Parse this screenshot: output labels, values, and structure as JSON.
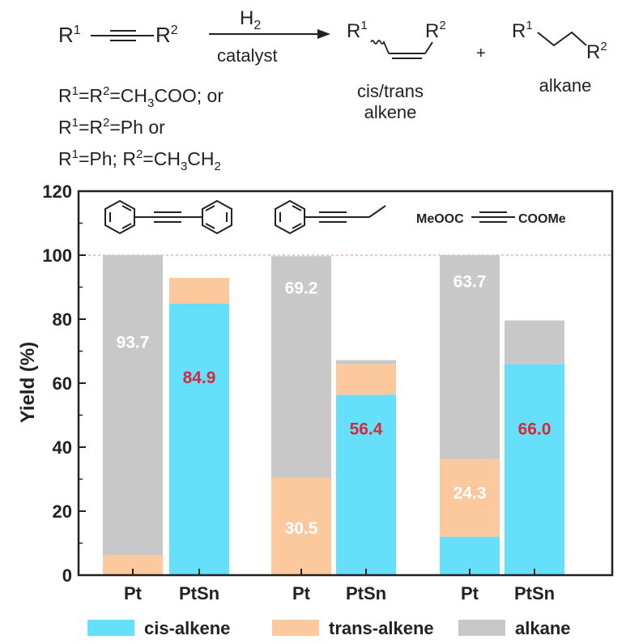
{
  "scheme": {
    "reactant_r1": "R",
    "reactant_r1_sup": "1",
    "reactant_r2": "R",
    "reactant_r2_sup": "2",
    "arrow_top": "H",
    "arrow_top_sub": "2",
    "arrow_bottom": "catalyst",
    "plus": "+",
    "alkene_label_1": "cis/trans",
    "alkene_label_2": "alkene",
    "alkane_label": "alkane",
    "cond_line1": {
      "a": "R",
      "a_sup": "1",
      "b": "=R",
      "b_sup": "2",
      "c": "=CH",
      "c_sub": "3",
      "d": "COO; or"
    },
    "cond_line2": {
      "a": "R",
      "a_sup": "1",
      "b": "=R",
      "b_sup": "2",
      "c": "=Ph or"
    },
    "cond_line3": {
      "a": "R",
      "a_sup": "1",
      "b": "=Ph; R",
      "b_sup": "2",
      "c": "=CH",
      "c_sub": "3",
      "d": "CH",
      "d_sub": "2"
    },
    "ester_label_left": "MeOOC",
    "ester_label_right": "COOMe"
  },
  "chart_data": {
    "type": "bar",
    "stacked": true,
    "ylabel": "Yield (%)",
    "xlabel": "",
    "ylim": [
      0,
      120
    ],
    "yticks": [
      0,
      20,
      40,
      60,
      80,
      100,
      120
    ],
    "reference_line": 100,
    "categories": [
      "Pt",
      "PtSn",
      "Pt",
      "PtSn",
      "Pt",
      "PtSn"
    ],
    "series": [
      {
        "name": "cis-alkene",
        "color": "#66e0fa",
        "values": [
          0,
          84.9,
          0,
          56.4,
          12.0,
          66.0
        ]
      },
      {
        "name": "trans-alkene",
        "color": "#fcc89e",
        "values": [
          6.3,
          8.0,
          30.5,
          9.6,
          24.3,
          0
        ]
      },
      {
        "name": "alkane",
        "color": "#c8c8c8",
        "values": [
          93.7,
          0,
          69.2,
          1.2,
          63.7,
          13.6
        ]
      }
    ],
    "data_labels": [
      {
        "text": "93.7",
        "bar": 0,
        "y": 73,
        "color": "#ffffff"
      },
      {
        "text": "84.9",
        "bar": 1,
        "y": 62,
        "color": "#d42a3c"
      },
      {
        "text": "69.2",
        "bar": 2,
        "y": 90,
        "color": "#ffffff"
      },
      {
        "text": "30.5",
        "bar": 2,
        "y": 15,
        "color": "#ffffff"
      },
      {
        "text": "56.4",
        "bar": 3,
        "y": 46,
        "color": "#d42a3c"
      },
      {
        "text": "63.7",
        "bar": 4,
        "y": 92,
        "color": "#ffffff"
      },
      {
        "text": "24.3",
        "bar": 4,
        "y": 26,
        "color": "#ffffff"
      },
      {
        "text": "66.0",
        "bar": 5,
        "y": 46,
        "color": "#d42a3c"
      }
    ],
    "legend": [
      "cis-alkene",
      "trans-alkene",
      "alkane"
    ],
    "legend_position": "bottom",
    "grid": false
  }
}
